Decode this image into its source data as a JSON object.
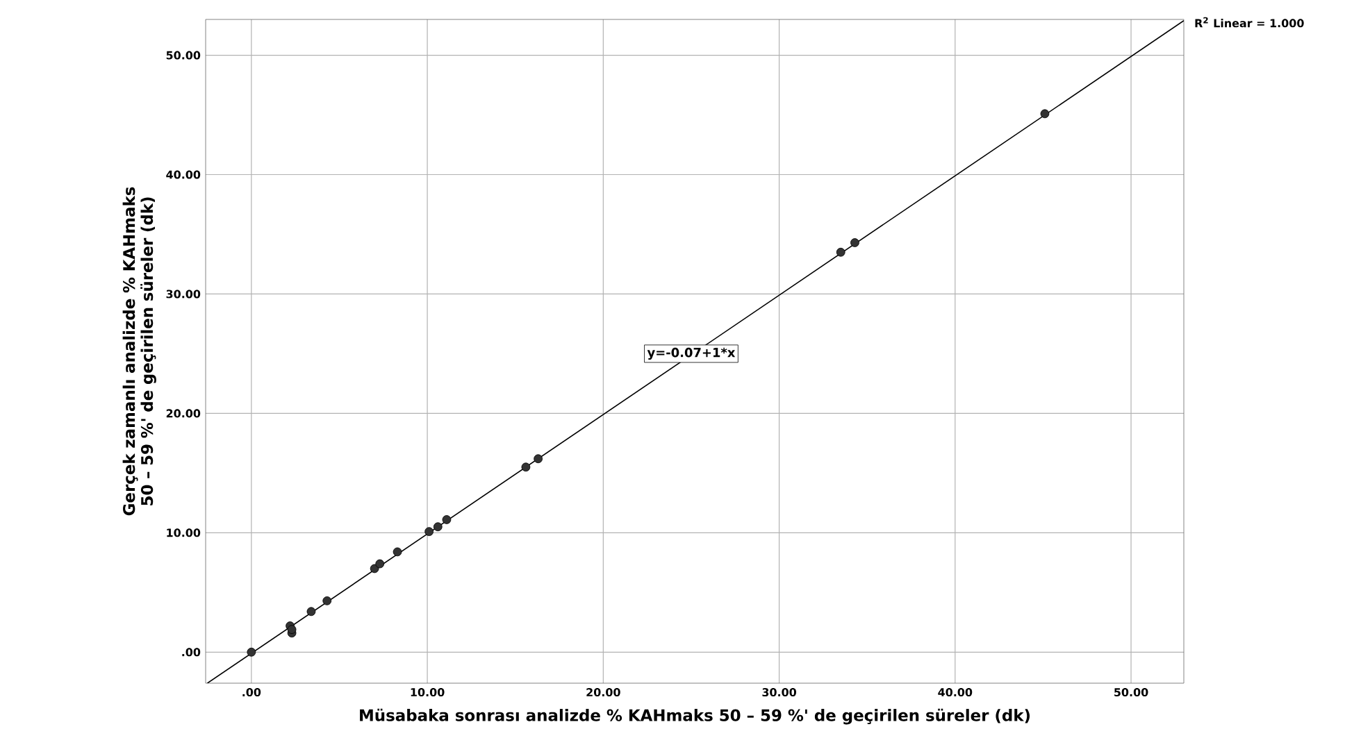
{
  "chart_data": {
    "type": "scatter",
    "xlabel": "Müsabaka sonrası analizde % KAHmaks 50 – 59 %' de geçirilen süreler (dk)",
    "ylabel": "Gerçek zamanlı analizde % KAHmaks 50 – 59 %' de geçirilen süreler (dk)",
    "xlim": [
      -2.6,
      53
    ],
    "ylim": [
      -2.6,
      53
    ],
    "xticks": [
      {
        "value": 0,
        "label": ".00"
      },
      {
        "value": 10,
        "label": "10.00"
      },
      {
        "value": 20,
        "label": "20.00"
      },
      {
        "value": 30,
        "label": "30.00"
      },
      {
        "value": 40,
        "label": "40.00"
      },
      {
        "value": 50,
        "label": "50.00"
      }
    ],
    "yticks": [
      {
        "value": 0,
        "label": ".00"
      },
      {
        "value": 10,
        "label": "10.00"
      },
      {
        "value": 20,
        "label": "20.00"
      },
      {
        "value": 30,
        "label": "30.00"
      },
      {
        "value": 40,
        "label": "40.00"
      },
      {
        "value": 50,
        "label": "50.00"
      }
    ],
    "grid": true,
    "marker": "circle",
    "series": [
      {
        "color": "#333333",
        "x": [
          0,
          2.2,
          2.3,
          2.3,
          3.4,
          4.3,
          7.0,
          7.3,
          8.3,
          10.1,
          10.6,
          11.1,
          15.6,
          16.3,
          33.5,
          34.3,
          45.1
        ],
        "values": [
          0,
          2.2,
          1.6,
          1.9,
          3.4,
          4.3,
          7.0,
          7.4,
          8.4,
          10.1,
          10.5,
          11.1,
          15.5,
          16.2,
          33.5,
          34.3,
          45.1
        ]
      },
      {
        "type": "line",
        "color": "#000000",
        "marker": "none",
        "x": [
          -2.5,
          53
        ],
        "values": [
          -2.6,
          52.9
        ]
      }
    ],
    "annotations": [
      {
        "text": "y=-0.07+1*x",
        "x": 25,
        "y": 25
      },
      "R$^{2}$ Linear = 1.000"
    ]
  }
}
